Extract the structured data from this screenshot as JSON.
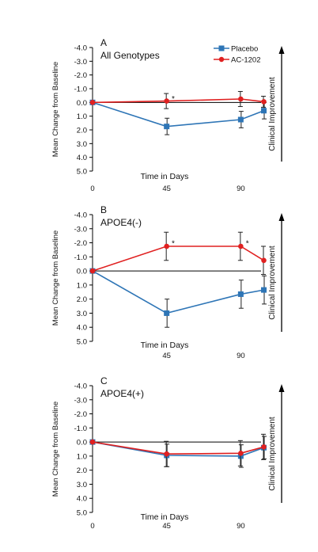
{
  "chart_data": [
    {
      "type": "line",
      "panel_letter": "A",
      "title": "All Genotypes",
      "xlabel": "Time in Days",
      "ylabel": "Mean Change from Baseline",
      "side_label": "Clinical Improvement",
      "ylim": [
        5.0,
        -4.0
      ],
      "y_ticks": [
        "-4.0",
        "-3.0",
        "-2.0",
        "-1.0",
        "0.0",
        "1.0",
        "2.0",
        "3.0",
        "4.0",
        "5.0"
      ],
      "y_tick_values": [
        -4,
        -3,
        -2,
        -1,
        0,
        1,
        2,
        3,
        4,
        5
      ],
      "xlim": [
        0,
        110
      ],
      "x_ticks": [
        "0",
        "45",
        "90"
      ],
      "x_tick_values": [
        0,
        45,
        90
      ],
      "zero_line": true,
      "legend": true,
      "series": [
        {
          "name": "Placebo",
          "color": "#2e75b6",
          "marker": "square",
          "x": [
            0,
            45,
            90,
            104
          ],
          "y": [
            0.0,
            1.75,
            1.25,
            0.6
          ],
          "err": [
            0,
            0.6,
            0.6,
            0.6
          ]
        },
        {
          "name": "AC-1202",
          "color": "#e02020",
          "marker": "circle",
          "x": [
            0,
            45,
            90,
            104
          ],
          "y": [
            0.0,
            -0.1,
            -0.25,
            -0.05
          ],
          "err": [
            0,
            0.55,
            0.55,
            0.4
          ]
        }
      ],
      "annotations": [
        {
          "text": "*",
          "x": 49,
          "y": -0.3
        }
      ]
    },
    {
      "type": "line",
      "panel_letter": "B",
      "title": "APOE4(-)",
      "xlabel": "Time in Days",
      "ylabel": "Mean Change from Baseline",
      "side_label": "Clinical Improvement",
      "ylim": [
        5.0,
        -4.0
      ],
      "y_ticks": [
        "-4.0",
        "-3.0",
        "-2.0",
        "-1.0",
        "0.0",
        "1.0",
        "2.0",
        "3.0",
        "4.0",
        "5.0"
      ],
      "y_tick_values": [
        -4,
        -3,
        -2,
        -1,
        0,
        1,
        2,
        3,
        4,
        5
      ],
      "xlim": [
        0,
        110
      ],
      "x_ticks": [
        "45",
        "90"
      ],
      "x_tick_values": [
        45,
        90
      ],
      "zero_line": true,
      "legend": false,
      "series": [
        {
          "name": "Placebo",
          "color": "#2e75b6",
          "marker": "square",
          "x": [
            0,
            45,
            90,
            104
          ],
          "y": [
            0.0,
            3.0,
            1.65,
            1.35
          ],
          "err": [
            0,
            1.0,
            1.0,
            1.0
          ]
        },
        {
          "name": "AC-1202",
          "color": "#e02020",
          "marker": "circle",
          "x": [
            0,
            45,
            90,
            104
          ],
          "y": [
            0.0,
            -1.75,
            -1.75,
            -0.75
          ],
          "err": [
            0,
            1.0,
            1.0,
            1.0
          ]
        }
      ],
      "annotations": [
        {
          "text": "*",
          "x": 49,
          "y": -2.0
        },
        {
          "text": "*",
          "x": 94,
          "y": -2.0
        }
      ]
    },
    {
      "type": "line",
      "panel_letter": "C",
      "title": "APOE4(+)",
      "xlabel": "Time in Days",
      "ylabel": "Mean Change from Baseline",
      "side_label": "Clinical Improvement",
      "ylim": [
        5.0,
        -4.0
      ],
      "y_ticks": [
        "-4.0",
        "-3.0",
        "-2.0",
        "-1.0",
        "0.0",
        "1.0",
        "2.0",
        "3.0",
        "4.0",
        "5.0"
      ],
      "y_tick_values": [
        -4,
        -3,
        -2,
        -1,
        0,
        1,
        2,
        3,
        4,
        5
      ],
      "xlim": [
        0,
        110
      ],
      "x_ticks": [
        "0",
        "45",
        "90"
      ],
      "x_tick_values": [
        0,
        45,
        90
      ],
      "zero_line": true,
      "legend": false,
      "series": [
        {
          "name": "Placebo",
          "color": "#2e75b6",
          "marker": "square",
          "x": [
            0,
            45,
            90,
            104
          ],
          "y": [
            0.0,
            0.95,
            1.0,
            0.4
          ],
          "err": [
            0,
            0.8,
            0.8,
            0.8
          ]
        },
        {
          "name": "AC-1202",
          "color": "#e02020",
          "marker": "circle",
          "x": [
            0,
            45,
            90,
            104
          ],
          "y": [
            0.0,
            0.85,
            0.8,
            0.35
          ],
          "err": [
            0,
            0.9,
            0.9,
            0.9
          ]
        }
      ],
      "annotations": []
    }
  ]
}
